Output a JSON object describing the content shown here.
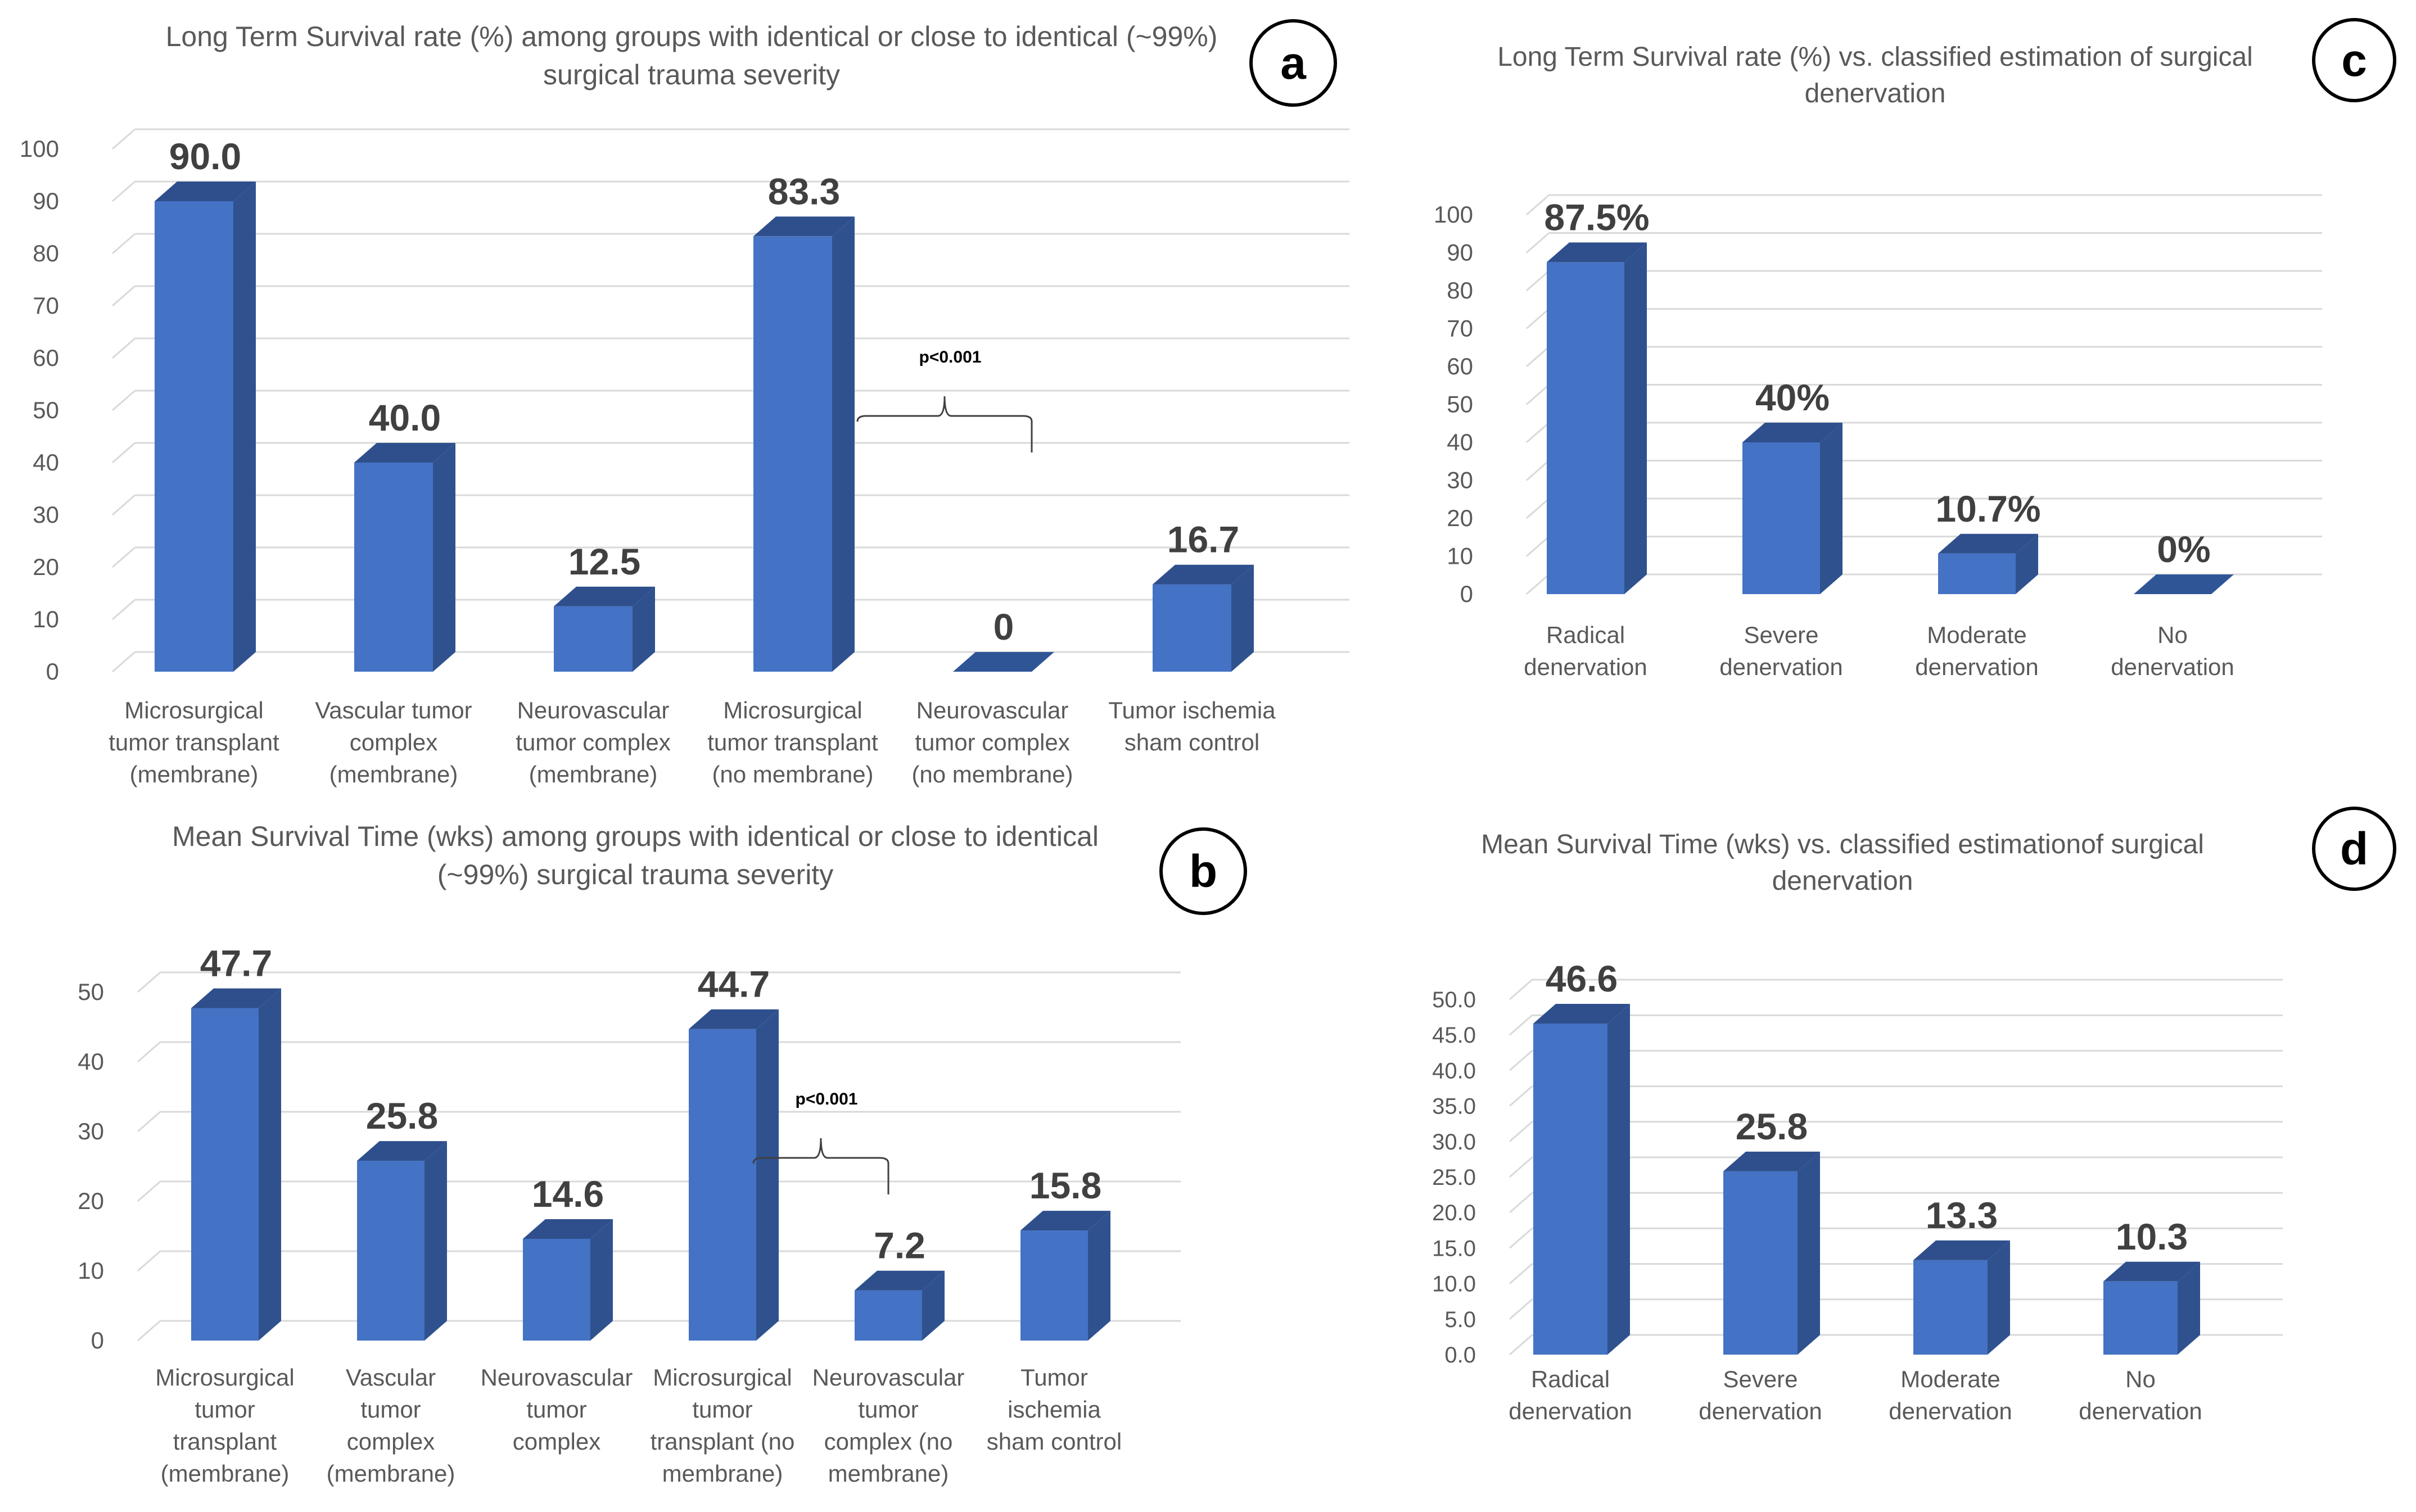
{
  "chart_data": [
    {
      "id": "a",
      "badge": "a",
      "type": "bar",
      "title": [
        "Long Term Survival rate (%) among groups with identical or close to identical (~99%)",
        "surgical trauma severity"
      ],
      "categories": [
        [
          "Microsurgical",
          "tumor transplant",
          "(membrane)"
        ],
        [
          "Vascular tumor",
          "complex",
          "(membrane)"
        ],
        [
          "Neurovascular",
          "tumor complex",
          "(membrane)"
        ],
        [
          "Microsurgical",
          "tumor transplant",
          "(no membrane)"
        ],
        [
          "Neurovascular",
          "tumor complex",
          "(no membrane)"
        ],
        [
          "Tumor ischemia",
          "sham control"
        ]
      ],
      "values": [
        90.0,
        40.0,
        12.5,
        83.3,
        0,
        16.7
      ],
      "data_labels": [
        "90.0",
        "40.0",
        "12.5",
        "83.3",
        "0",
        "16.7"
      ],
      "yticks": [
        "0",
        "10",
        "20",
        "30",
        "40",
        "50",
        "60",
        "70",
        "80",
        "90",
        "100"
      ],
      "ylim": [
        0,
        100
      ],
      "annotation": {
        "text": "p<0.001",
        "between": [
          3,
          4
        ]
      }
    },
    {
      "id": "b",
      "badge": "b",
      "type": "bar",
      "title": [
        "Mean Survival Time (wks) among groups with identical or close to identical",
        "(~99%) surgical trauma  severity"
      ],
      "categories": [
        [
          "Microsurgical",
          "tumor",
          "transplant",
          "(membrane)"
        ],
        [
          "Vascular",
          "tumor",
          "complex",
          "(membrane)"
        ],
        [
          "Neurovascular",
          "tumor",
          "complex"
        ],
        [
          "Microsurgical",
          "tumor",
          "transplant (no",
          "membrane)"
        ],
        [
          "Neurovascular",
          "tumor",
          "complex  (no",
          "membrane)"
        ],
        [
          "Tumor",
          "ischemia",
          "sham control"
        ]
      ],
      "values": [
        47.7,
        25.8,
        14.6,
        44.7,
        7.2,
        15.8
      ],
      "data_labels": [
        "47.7",
        "25.8",
        "14.6",
        "44.7",
        "7.2",
        "15.8"
      ],
      "yticks": [
        "0",
        "10",
        "20",
        "30",
        "40",
        "50"
      ],
      "ylim": [
        0,
        50
      ],
      "annotation": {
        "text": "p<0.001",
        "between": [
          3,
          4
        ]
      }
    },
    {
      "id": "c",
      "badge": "c",
      "type": "bar",
      "title": [
        "Long Term Survival rate (%) vs. classified estimation of surgical",
        "denervation"
      ],
      "categories": [
        [
          "Radical",
          "denervation"
        ],
        [
          "Severe",
          "denervation"
        ],
        [
          "Moderate",
          "denervation"
        ],
        [
          "No",
          "denervation"
        ]
      ],
      "values": [
        87.5,
        40,
        10.7,
        0
      ],
      "data_labels": [
        "87.5%",
        "40%",
        "10.7%",
        "0%"
      ],
      "yticks": [
        "0",
        "10",
        "20",
        "30",
        "40",
        "50",
        "60",
        "70",
        "80",
        "90",
        "100"
      ],
      "ylim": [
        0,
        100
      ]
    },
    {
      "id": "d",
      "badge": "d",
      "type": "bar",
      "title": [
        "Mean Survival Time (wks) vs. classified estimationof surgical",
        "denervation"
      ],
      "categories": [
        [
          "Radical",
          "denervation"
        ],
        [
          "Severe",
          "denervation"
        ],
        [
          "Moderate",
          "denervation"
        ],
        [
          "No",
          "denervation"
        ]
      ],
      "values": [
        46.6,
        25.8,
        13.3,
        10.3
      ],
      "data_labels": [
        "46.6",
        "25.8",
        "13.3",
        "10.3"
      ],
      "yticks": [
        "0.0",
        "5.0",
        "10.0",
        "15.0",
        "20.0",
        "25.0",
        "30.0",
        "35.0",
        "40.0",
        "45.0",
        "50.0"
      ],
      "ylim": [
        0,
        50
      ]
    }
  ],
  "colors": {
    "bar_front": "#4472c4",
    "bar_side": "#2f528f",
    "bar_top": "#2e4f8c",
    "grid": "#d9d9d9",
    "text": "#595959"
  }
}
